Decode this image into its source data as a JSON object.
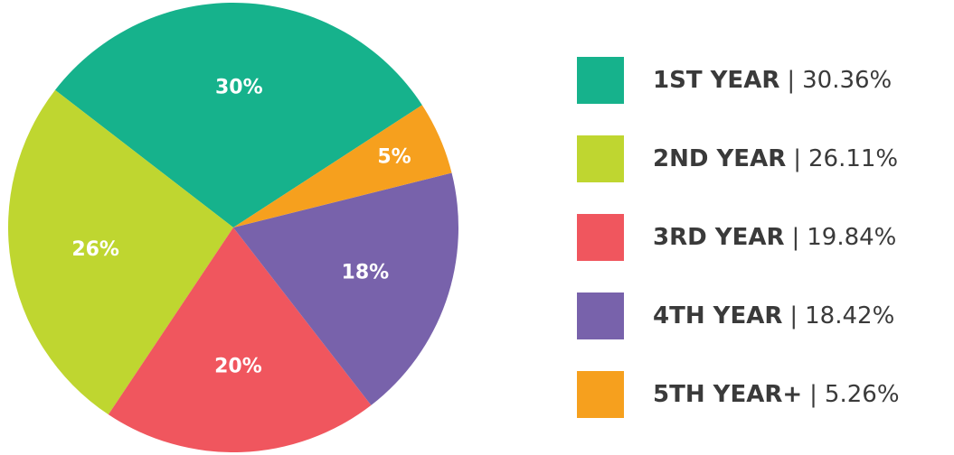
{
  "chart_data": {
    "type": "pie",
    "categories": [
      "1ST YEAR",
      "2ND YEAR",
      "3RD YEAR",
      "4TH YEAR",
      "5TH YEAR+"
    ],
    "values": [
      30.36,
      26.11,
      19.84,
      18.42,
      5.26
    ],
    "value_labels": [
      "30%",
      "26%",
      "20%",
      "18%",
      "5%"
    ],
    "legend_value_labels": [
      "30.36%",
      "26.11%",
      "19.84%",
      "18.42%",
      "5.26%"
    ],
    "legend_separator": "|",
    "colors": [
      "#16b28c",
      "#bfd630",
      "#f0565e",
      "#7862ab",
      "#f6a01e"
    ],
    "legend": "right"
  }
}
